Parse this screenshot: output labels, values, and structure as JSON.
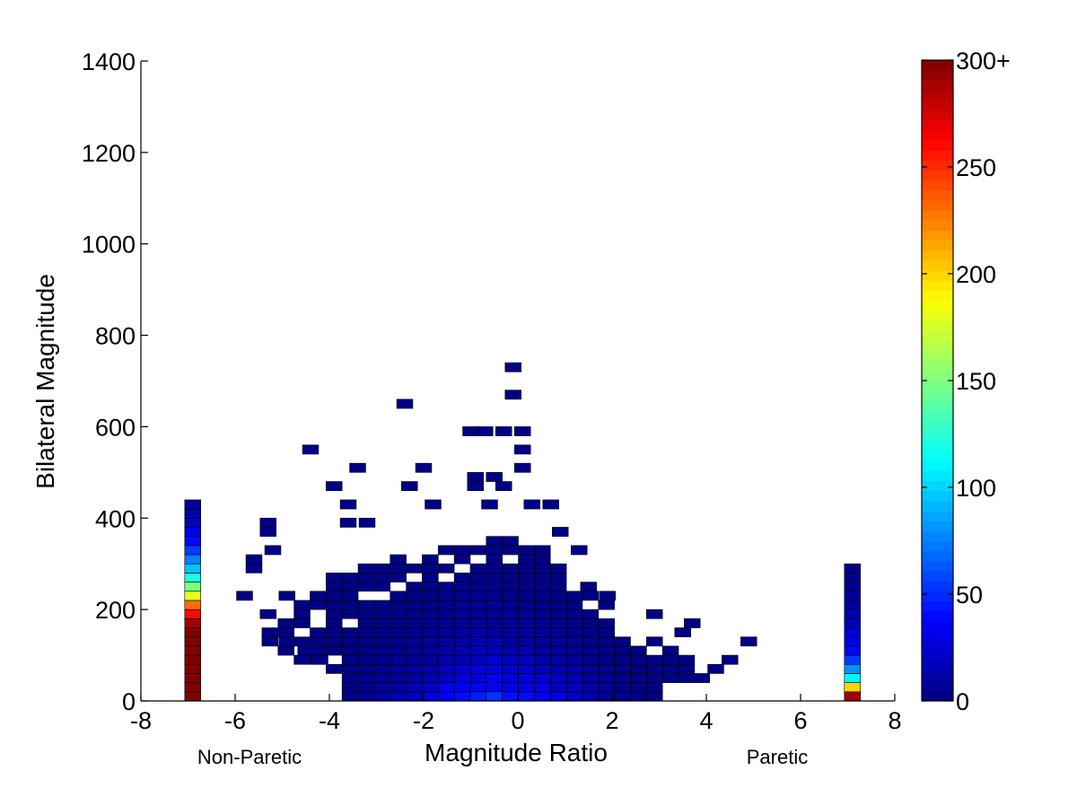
{
  "chart_data": {
    "type": "heatmap",
    "xlabel": "Magnitude Ratio",
    "ylabel": "Bilateral Magnitude",
    "xlim": [
      -8,
      8
    ],
    "ylim": [
      0,
      1400
    ],
    "xticks": [
      "-8",
      "-6",
      "-4",
      "-2",
      "0",
      "2",
      "4",
      "6",
      "8"
    ],
    "yticks": [
      "0",
      "200",
      "400",
      "600",
      "800",
      "1000",
      "1200",
      "1400"
    ],
    "x_side_labels": {
      "left": "Non-Paretic",
      "right": "Paretic"
    },
    "bin_width_x": 0.34,
    "bin_height_y": 20,
    "colormap": "jet",
    "colorbar": {
      "min": 0,
      "max": 300,
      "tick_values": [
        0,
        50,
        100,
        150,
        200,
        250,
        300
      ],
      "tick_labels": [
        "0",
        "50",
        "100",
        "150",
        "200",
        "250",
        "300+"
      ]
    },
    "grid": false,
    "edge_columns": [
      {
        "x": -6.9,
        "counts_bottom_to_top": [
          300,
          300,
          300,
          300,
          300,
          300,
          300,
          300,
          290,
          260,
          230,
          180,
          150,
          120,
          95,
          75,
          55,
          40,
          30,
          20,
          12,
          8
        ]
      },
      {
        "x": 7.1,
        "counts_bottom_to_top": [
          290,
          200,
          110,
          80,
          55,
          40,
          30,
          25,
          18,
          14,
          10,
          7,
          5,
          4
        ]
      },
      {
        "x": 7.1,
        "y": 290,
        "count": 3
      }
    ],
    "cloud": {
      "x_range": [
        -5.6,
        4.9
      ],
      "y_range": [
        0,
        730
      ],
      "peak_x": -0.5,
      "peak_count": 50,
      "description_values": "dense cluster of bins centered near x=-1, y<300, sparse outliers up to y=730"
    },
    "outlier_points": [
      {
        "x": -0.1,
        "y": 730
      },
      {
        "x": -0.1,
        "y": 670
      },
      {
        "x": -2.4,
        "y": 650
      },
      {
        "x": -0.7,
        "y": 590
      },
      {
        "x": -0.3,
        "y": 590
      },
      {
        "x": 0.1,
        "y": 590
      },
      {
        "x": -1.0,
        "y": 590
      },
      {
        "x": -4.4,
        "y": 550
      },
      {
        "x": 0.1,
        "y": 550
      },
      {
        "x": -3.4,
        "y": 510
      },
      {
        "x": -2.0,
        "y": 510
      },
      {
        "x": 0.1,
        "y": 510
      },
      {
        "x": -0.9,
        "y": 490
      },
      {
        "x": -0.5,
        "y": 490
      },
      {
        "x": -3.9,
        "y": 470
      },
      {
        "x": -2.3,
        "y": 470
      },
      {
        "x": -0.9,
        "y": 470
      },
      {
        "x": -0.3,
        "y": 470
      },
      {
        "x": -3.6,
        "y": 430
      },
      {
        "x": -1.8,
        "y": 430
      },
      {
        "x": -0.6,
        "y": 430
      },
      {
        "x": 0.3,
        "y": 430
      },
      {
        "x": 0.7,
        "y": 430
      },
      {
        "x": -5.3,
        "y": 390
      },
      {
        "x": -5.3,
        "y": 370
      },
      {
        "x": -3.6,
        "y": 390
      },
      {
        "x": -3.2,
        "y": 390
      },
      {
        "x": -5.2,
        "y": 330
      },
      {
        "x": -5.6,
        "y": 310
      },
      {
        "x": -5.6,
        "y": 290
      },
      {
        "x": 1.3,
        "y": 330
      },
      {
        "x": 0.9,
        "y": 370
      },
      {
        "x": 1.5,
        "y": 250
      },
      {
        "x": 1.9,
        "y": 230
      },
      {
        "x": 2.9,
        "y": 190
      },
      {
        "x": 3.7,
        "y": 170
      },
      {
        "x": 3.5,
        "y": 150
      },
      {
        "x": 4.9,
        "y": 130
      },
      {
        "x": 4.5,
        "y": 90
      },
      {
        "x": 4.2,
        "y": 70
      },
      {
        "x": 3.9,
        "y": 50
      },
      {
        "x": -5.8,
        "y": 230
      },
      {
        "x": -4.9,
        "y": 230
      },
      {
        "x": -5.3,
        "y": 190
      },
      {
        "x": -4.9,
        "y": 130
      },
      {
        "x": -4.5,
        "y": 110
      },
      {
        "x": -4.2,
        "y": 90
      }
    ]
  }
}
